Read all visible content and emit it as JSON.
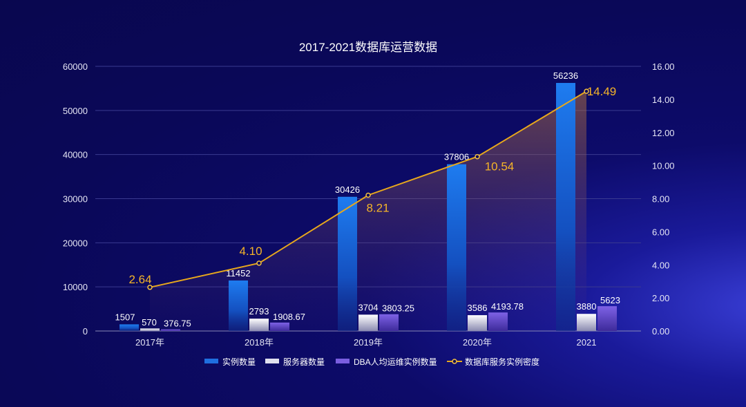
{
  "chart_data": {
    "type": "bar",
    "title": "2017-2021数据库运营数据",
    "categories": [
      "2017年",
      "2018年",
      "2019年",
      "2020年",
      "2021"
    ],
    "y_left": {
      "ylim": [
        0,
        60000
      ],
      "ticks": [
        "0",
        "10000",
        "20000",
        "30000",
        "40000",
        "50000",
        "60000"
      ]
    },
    "y_right": {
      "ylim": [
        0,
        16
      ],
      "ticks": [
        "0.00",
        "2.00",
        "4.00",
        "6.00",
        "8.00",
        "10.00",
        "12.00",
        "14.00",
        "16.00"
      ]
    },
    "series": [
      {
        "name": "实例数量",
        "type": "bar",
        "axis": "left",
        "values": [
          1507,
          11452,
          30426,
          37806,
          56236
        ],
        "labels": [
          "1507",
          "11452",
          "30426",
          "37806",
          "56236"
        ],
        "color": "#1f6fe0"
      },
      {
        "name": "服务器数量",
        "type": "bar",
        "axis": "left",
        "values": [
          570,
          2793,
          3704,
          3586,
          3880
        ],
        "labels": [
          "570",
          "2793",
          "3704",
          "3586",
          "3880"
        ],
        "color": "#d9d9e8"
      },
      {
        "name": "DBA人均运维实例数量",
        "type": "bar",
        "axis": "left",
        "values": [
          376.75,
          1908.67,
          3803.25,
          4193.78,
          5623
        ],
        "labels": [
          "376.75",
          "1908.67",
          "3803.25",
          "4193.78",
          "5623"
        ],
        "color": "#6a4fd0"
      },
      {
        "name": "数据库服务实例密度",
        "type": "line",
        "axis": "right",
        "values": [
          2.64,
          4.1,
          8.21,
          10.54,
          14.49
        ],
        "labels": [
          "2.64",
          "4.10",
          "8.21",
          "10.54",
          "14.49"
        ],
        "color": "#f0b020"
      }
    ],
    "legend_position": "bottom",
    "grid": true
  }
}
